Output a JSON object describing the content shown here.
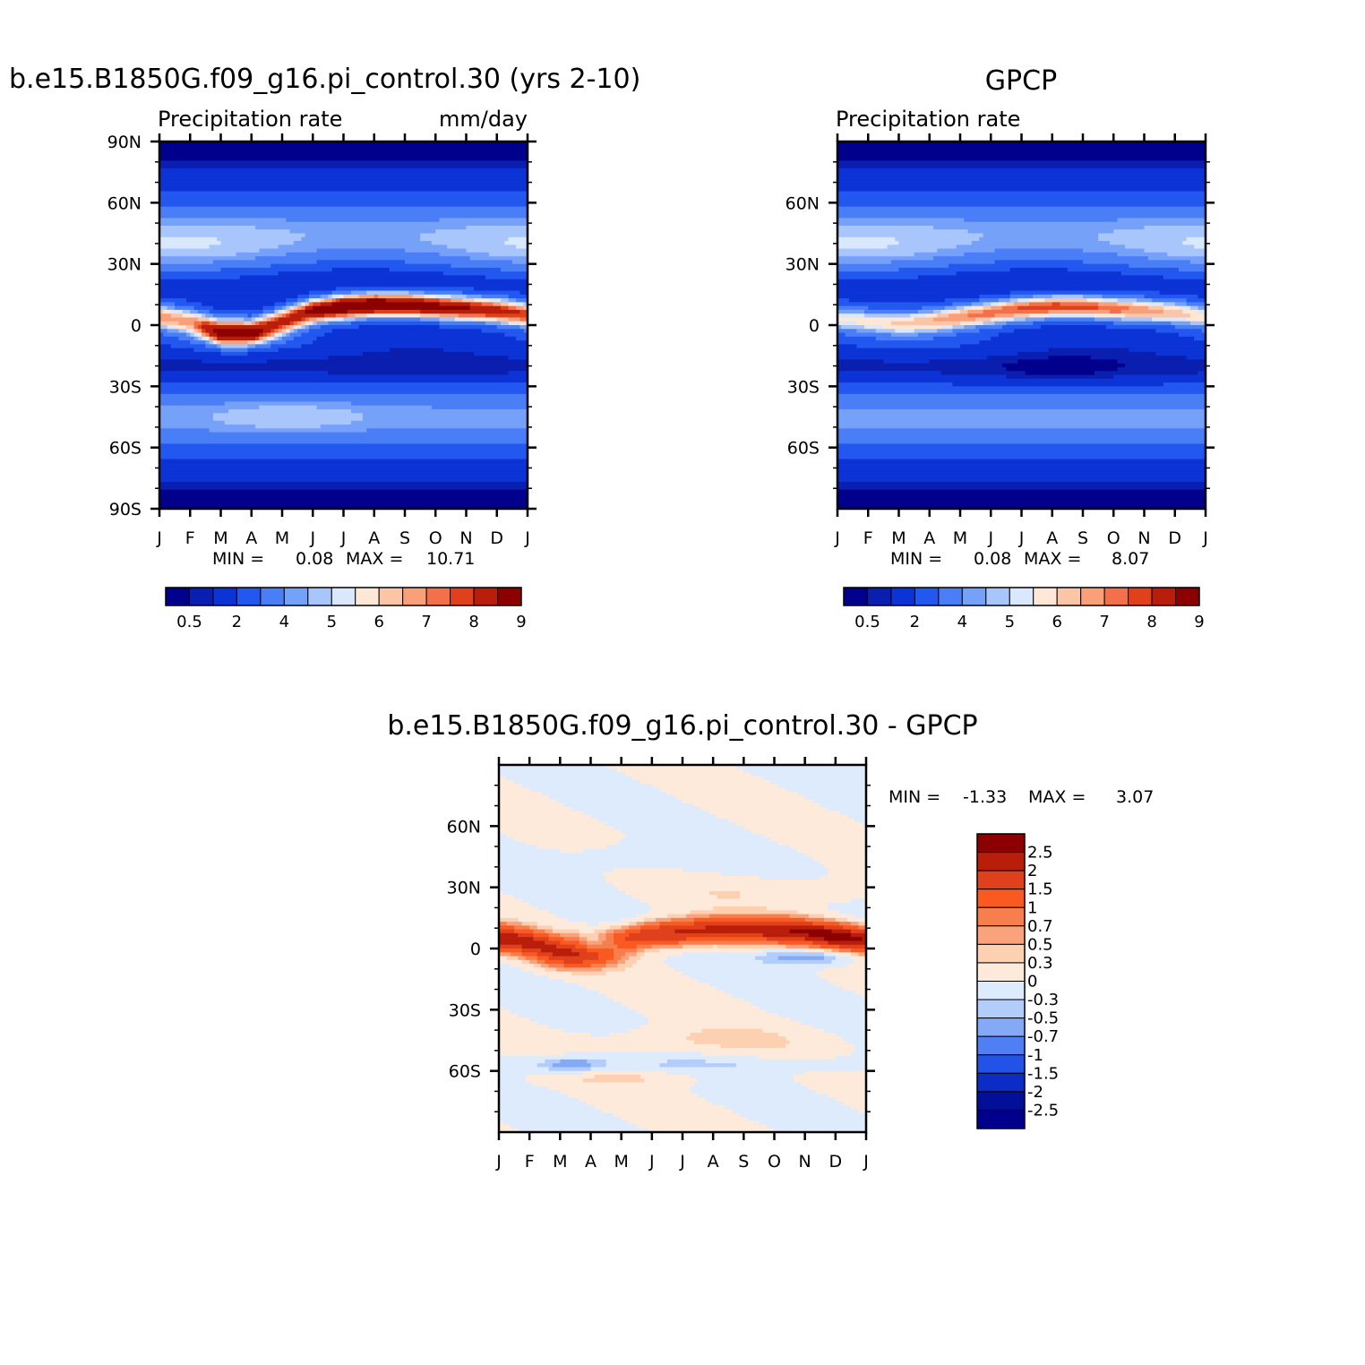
{
  "months": [
    "J",
    "F",
    "M",
    "A",
    "M",
    "J",
    "J",
    "A",
    "S",
    "O",
    "N",
    "D",
    "J"
  ],
  "chart_data": [
    {
      "type": "heatmap",
      "title": "b.e15.B1850G.f09_g16.pi_control.30 (yrs 2-10)",
      "left_string": "Precipitation rate",
      "right_string": "mm/day",
      "xlabel": "",
      "ylabel": "",
      "y_ticks": [
        "90N",
        "60N",
        "30N",
        "0",
        "30S",
        "60S",
        "90S"
      ],
      "ylim": [
        -90,
        90
      ],
      "min_label": "MIN =",
      "min_value": "0.08",
      "max_label": "MAX =",
      "max_value": "10.71",
      "colorbar_labels": [
        "0.5",
        "2",
        "4",
        "5",
        "6",
        "7",
        "8",
        "9"
      ],
      "colors": [
        "#00008c",
        "#0a1faf",
        "#0c33d6",
        "#2257f0",
        "#4a7ef6",
        "#76a1f9",
        "#a8c6fb",
        "#d9e8fd",
        "#fde7d7",
        "#fbc5a8",
        "#f9a07a",
        "#f4704a",
        "#e0401c",
        "#b81e0a",
        "#8c0000"
      ],
      "fields": {
        "itcz_lat": [
          4,
          2,
          -3,
          -3,
          2,
          7,
          9,
          10,
          10,
          9,
          8,
          7,
          5
        ],
        "itcz_peak": [
          7.0,
          6.5,
          8.2,
          7.6,
          8.2,
          9.6,
          10.7,
          10.5,
          10.0,
          9.6,
          9.2,
          8.6,
          8.0
        ]
      }
    },
    {
      "type": "heatmap",
      "title": "GPCP",
      "left_string": "Precipitation rate",
      "right_string": "",
      "xlabel": "",
      "ylabel": "",
      "y_ticks": [
        "60N",
        "30N",
        "0",
        "30S",
        "60S"
      ],
      "ylim": [
        -90,
        90
      ],
      "min_label": "MIN =",
      "min_value": "0.08",
      "max_label": "MAX =",
      "max_value": "8.07",
      "colorbar_labels": [
        "0.5",
        "2",
        "4",
        "5",
        "6",
        "7",
        "8",
        "9"
      ],
      "colors": [
        "#00008c",
        "#0a1faf",
        "#0c33d6",
        "#2257f0",
        "#4a7ef6",
        "#76a1f9",
        "#a8c6fb",
        "#d9e8fd",
        "#fde7d7",
        "#fbc5a8",
        "#f9a07a",
        "#f4704a",
        "#e0401c",
        "#b81e0a",
        "#8c0000"
      ],
      "fields": {
        "itcz_lat": [
          3,
          2,
          1,
          2,
          4,
          6,
          8,
          9,
          9,
          8,
          7,
          6,
          4
        ],
        "itcz_peak": [
          5.6,
          5.6,
          5.9,
          6.4,
          7.0,
          7.5,
          7.9,
          8.1,
          7.9,
          7.5,
          7.0,
          6.4,
          5.8
        ]
      }
    },
    {
      "type": "heatmap",
      "title": "b.e15.B1850G.f09_g16.pi_control.30 - GPCP",
      "left_string": "",
      "right_string": "",
      "xlabel": "",
      "ylabel": "",
      "y_ticks": [
        "60N",
        "30N",
        "0",
        "30S",
        "60S"
      ],
      "ylim": [
        -90,
        90
      ],
      "min_label": "MIN =",
      "min_value": "-1.33",
      "max_label": "MAX =",
      "max_value": "3.07",
      "colorbar_labels": [
        "2.5",
        "2",
        "1.5",
        "1",
        "0.7",
        "0.5",
        "0.3",
        "0",
        "-0.3",
        "-0.5",
        "-0.7",
        "-1",
        "-1.5",
        "-2",
        "-2.5"
      ],
      "colors": [
        "#8c0000",
        "#b81e0a",
        "#e0401c",
        "#fa5a22",
        "#f77e4d",
        "#f9a27b",
        "#fdd0b1",
        "#feeadb",
        "#deebfc",
        "#b2cdfb",
        "#84a9f6",
        "#4f7ff2",
        "#2253e6",
        "#0d2bc7",
        "#020f98",
        "#00008c"
      ],
      "fields": {
        "band_lat": [
          5,
          3,
          0,
          1,
          4,
          7,
          8,
          9,
          9,
          9,
          8,
          6,
          4
        ],
        "band_amp": [
          2.4,
          2.1,
          1.6,
          1.3,
          1.7,
          2.0,
          2.2,
          2.1,
          2.0,
          2.3,
          2.4,
          2.8,
          2.5
        ]
      }
    }
  ]
}
